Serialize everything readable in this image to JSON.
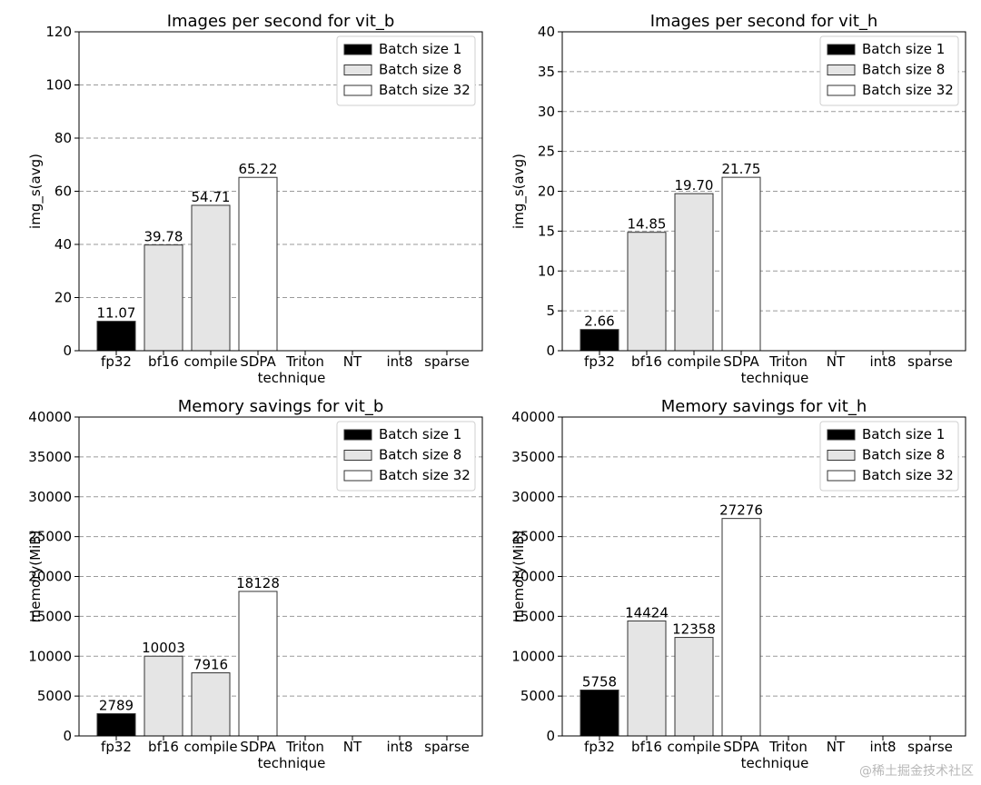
{
  "chart_data": [
    {
      "type": "bar",
      "title": "Images per second for vit_b",
      "xlabel": "technique",
      "ylabel": "img_s(avg)",
      "ylim": [
        0,
        120
      ],
      "yticks": [
        "0",
        "20",
        "40",
        "60",
        "80",
        "100",
        "120"
      ],
      "grid": "horizontal dashed",
      "legend_position": "top-right",
      "categories": [
        "fp32",
        "bf16",
        "compile",
        "SDPA",
        "Triton",
        "NT",
        "int8",
        "sparse"
      ],
      "series": [
        {
          "name": "Batch size 1",
          "color": "#000000",
          "values": [
            11.07,
            null,
            null,
            null,
            null,
            null,
            null,
            null
          ],
          "labels": [
            "11.07",
            "",
            "",
            "",
            "",
            "",
            "",
            ""
          ]
        },
        {
          "name": "Batch size 8",
          "color": "#e5e5e5",
          "values": [
            null,
            39.78,
            54.71,
            null,
            null,
            null,
            null,
            null
          ],
          "labels": [
            "",
            "39.78",
            "54.71",
            "",
            "",
            "",
            "",
            ""
          ]
        },
        {
          "name": "Batch size 32",
          "color": "#ffffff",
          "values": [
            null,
            null,
            null,
            65.22,
            null,
            null,
            null,
            null
          ],
          "labels": [
            "",
            "",
            "",
            "65.22",
            "",
            "",
            "",
            ""
          ]
        }
      ]
    },
    {
      "type": "bar",
      "title": "Images per second for vit_h",
      "xlabel": "technique",
      "ylabel": "img_s(avg)",
      "ylim": [
        0,
        40
      ],
      "yticks": [
        "0",
        "5",
        "10",
        "15",
        "20",
        "25",
        "30",
        "35",
        "40"
      ],
      "grid": "horizontal dashed",
      "legend_position": "top-right",
      "categories": [
        "fp32",
        "bf16",
        "compile",
        "SDPA",
        "Triton",
        "NT",
        "int8",
        "sparse"
      ],
      "series": [
        {
          "name": "Batch size 1",
          "color": "#000000",
          "values": [
            2.66,
            null,
            null,
            null,
            null,
            null,
            null,
            null
          ],
          "labels": [
            "2.66",
            "",
            "",
            "",
            "",
            "",
            "",
            ""
          ]
        },
        {
          "name": "Batch size 8",
          "color": "#e5e5e5",
          "values": [
            null,
            14.85,
            19.7,
            null,
            null,
            null,
            null,
            null
          ],
          "labels": [
            "",
            "14.85",
            "19.70",
            "",
            "",
            "",
            "",
            ""
          ]
        },
        {
          "name": "Batch size 32",
          "color": "#ffffff",
          "values": [
            null,
            null,
            null,
            21.75,
            null,
            null,
            null,
            null
          ],
          "labels": [
            "",
            "",
            "",
            "21.75",
            "",
            "",
            "",
            ""
          ]
        }
      ]
    },
    {
      "type": "bar",
      "title": "Memory savings for vit_b",
      "xlabel": "technique",
      "ylabel": "memory(MiB)",
      "ylim": [
        0,
        40000
      ],
      "yticks": [
        "0",
        "5000",
        "10000",
        "15000",
        "20000",
        "25000",
        "30000",
        "35000",
        "40000"
      ],
      "grid": "horizontal dashed",
      "legend_position": "top-right",
      "categories": [
        "fp32",
        "bf16",
        "compile",
        "SDPA",
        "Triton",
        "NT",
        "int8",
        "sparse"
      ],
      "series": [
        {
          "name": "Batch size 1",
          "color": "#000000",
          "values": [
            2789,
            null,
            null,
            null,
            null,
            null,
            null,
            null
          ],
          "labels": [
            "2789",
            "",
            "",
            "",
            "",
            "",
            "",
            ""
          ]
        },
        {
          "name": "Batch size 8",
          "color": "#e5e5e5",
          "values": [
            null,
            10003,
            7916,
            null,
            null,
            null,
            null,
            null
          ],
          "labels": [
            "",
            "10003",
            "7916",
            "",
            "",
            "",
            "",
            ""
          ]
        },
        {
          "name": "Batch size 32",
          "color": "#ffffff",
          "values": [
            null,
            null,
            null,
            18128,
            null,
            null,
            null,
            null
          ],
          "labels": [
            "",
            "",
            "",
            "18128",
            "",
            "",
            "",
            ""
          ]
        }
      ]
    },
    {
      "type": "bar",
      "title": "Memory savings for vit_h",
      "xlabel": "technique",
      "ylabel": "memory(MiB)",
      "ylim": [
        0,
        40000
      ],
      "yticks": [
        "0",
        "5000",
        "10000",
        "15000",
        "20000",
        "25000",
        "30000",
        "35000",
        "40000"
      ],
      "grid": "horizontal dashed",
      "legend_position": "top-right",
      "categories": [
        "fp32",
        "bf16",
        "compile",
        "SDPA",
        "Triton",
        "NT",
        "int8",
        "sparse"
      ],
      "series": [
        {
          "name": "Batch size 1",
          "color": "#000000",
          "values": [
            5758,
            null,
            null,
            null,
            null,
            null,
            null,
            null
          ],
          "labels": [
            "5758",
            "",
            "",
            "",
            "",
            "",
            "",
            ""
          ]
        },
        {
          "name": "Batch size 8",
          "color": "#e5e5e5",
          "values": [
            null,
            14424,
            12358,
            null,
            null,
            null,
            null,
            null
          ],
          "labels": [
            "",
            "14424",
            "12358",
            "",
            "",
            "",
            "",
            ""
          ]
        },
        {
          "name": "Batch size 32",
          "color": "#ffffff",
          "values": [
            null,
            null,
            null,
            27276,
            null,
            null,
            null,
            null
          ],
          "labels": [
            "",
            "",
            "",
            "27276",
            "",
            "",
            "",
            ""
          ]
        }
      ]
    }
  ],
  "watermark": "@稀土掘金技术社区"
}
